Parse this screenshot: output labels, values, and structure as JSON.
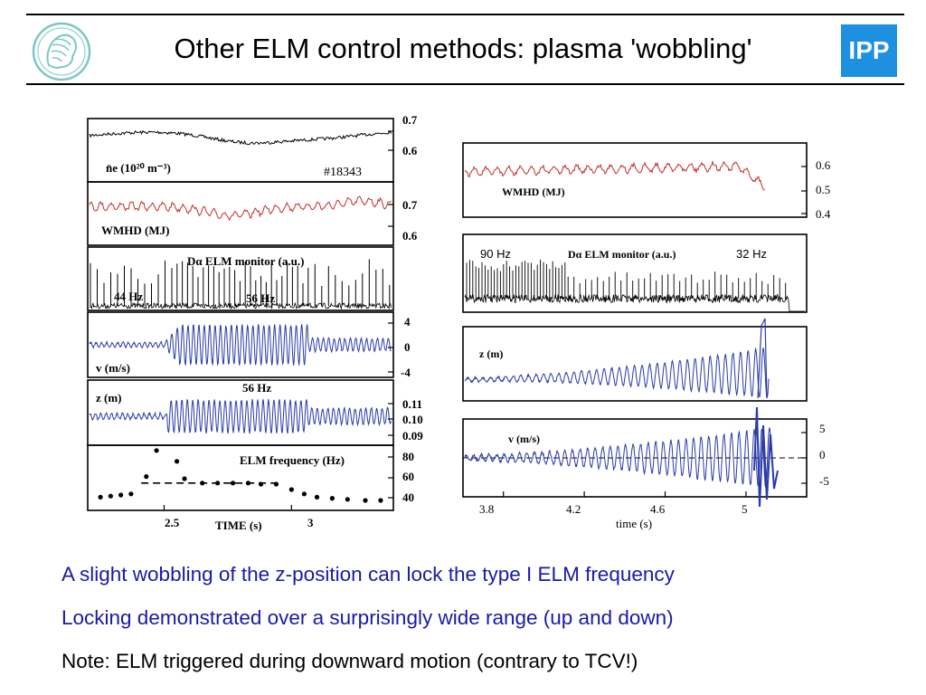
{
  "header": {
    "title": "Other ELM control methods: plasma 'wobbling'",
    "logo_left_icon": "minerva-head-icon",
    "logo_right_icon": "ipp-logo-icon",
    "logo_right_text": "IPP",
    "accent": "#1e90e0"
  },
  "bullets": [
    {
      "text": "A slight wobbling of the z-position can lock the type I ELM frequency",
      "color": "#1a1aa8"
    },
    {
      "text": "Locking demonstrated over a surprisingly wide range (up and down)",
      "color": "#1a1aa8"
    },
    {
      "text": "Note: ELM triggered during downward motion (contrary to TCV!)",
      "color": "#000000"
    }
  ],
  "chart_data": [
    {
      "type": "line",
      "panels": [
        {
          "label": "n̄e (10²⁰ m⁻³)",
          "annotation": "#18343",
          "yticks": [
            "0.7",
            "0.6"
          ],
          "color": "#000000"
        },
        {
          "label": "WMHD (MJ)",
          "yticks": [
            "0.7",
            "0.6"
          ],
          "color": "#c0302a"
        },
        {
          "label": "Dα ELM monitor (a.u.)",
          "annotations": [
            "44 Hz",
            "56 Hz"
          ],
          "yticks": [],
          "color": "#000000"
        },
        {
          "label": "v (m/s)",
          "yticks": [
            "4",
            "0",
            "-4"
          ],
          "color": "#2a3aa8"
        },
        {
          "label": "z (m)",
          "annotation": "56 Hz",
          "yticks": [
            "0.11",
            "0.10",
            "0.09"
          ],
          "color": "#2a3aa8"
        },
        {
          "label": "ELM frequency (Hz)",
          "yticks": [
            "80",
            "60",
            "40"
          ],
          "type": "scatter",
          "color": "#000000",
          "points": [
            [
              2.25,
              43
            ],
            [
              2.29,
              44
            ],
            [
              2.33,
              45
            ],
            [
              2.37,
              46
            ],
            [
              2.43,
              62
            ],
            [
              2.47,
              86
            ],
            [
              2.55,
              76
            ],
            [
              2.58,
              60
            ],
            [
              2.65,
              56
            ],
            [
              2.71,
              56
            ],
            [
              2.77,
              56
            ],
            [
              2.83,
              56
            ],
            [
              2.88,
              55
            ],
            [
              2.94,
              55
            ],
            [
              3.0,
              50
            ],
            [
              3.05,
              46
            ],
            [
              3.1,
              43
            ],
            [
              3.16,
              42
            ],
            [
              3.22,
              41
            ],
            [
              3.29,
              40
            ],
            [
              3.35,
              40
            ]
          ],
          "dashed_level": 56
        }
      ],
      "xticks": [
        "2.5",
        "3"
      ],
      "xlabel": "TIME  (s)",
      "x": [
        2.2,
        3.4
      ]
    },
    {
      "type": "line",
      "panels": [
        {
          "label": "WMHD (MJ)",
          "yticks": [
            "0.6",
            "0.5",
            "0.4"
          ],
          "color": "#c0302a"
        },
        {
          "label": "Dα ELM monitor (a.u.)",
          "annotations": [
            "90 Hz",
            "32 Hz"
          ],
          "yticks": [],
          "color": "#000000"
        },
        {
          "label": "z (m)",
          "yticks": [],
          "color": "#2a3aa8"
        },
        {
          "label": "v (m/s)",
          "yticks": [
            "5",
            "0",
            "-5"
          ],
          "color": "#2a3aa8"
        }
      ],
      "xticks": [
        "3.8",
        "4.2",
        "4.6",
        "5"
      ],
      "xlabel": "time  (s)",
      "x": [
        3.6,
        5.3
      ]
    }
  ]
}
